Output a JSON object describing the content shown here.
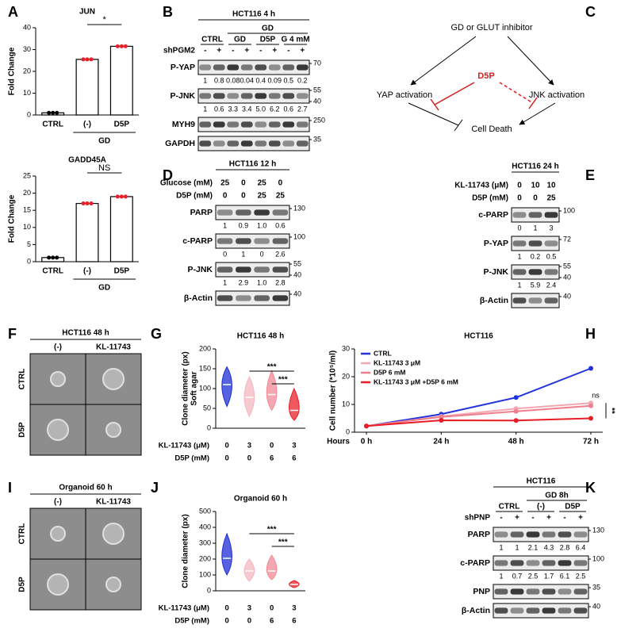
{
  "panel_labels": [
    "A",
    "B",
    "C",
    "D",
    "E",
    "F",
    "G",
    "H",
    "I",
    "J",
    "K"
  ],
  "chart_data": [
    {
      "type": "bar",
      "title": "JUN",
      "ylabel": "Fold Change",
      "categories": [
        "CTRL",
        "(-)",
        "D5P"
      ],
      "values": [
        1,
        25.5,
        31.5
      ],
      "color": "#ffffff",
      "marker_colors": [
        "#000000",
        "#e8202a",
        "#e8202a"
      ],
      "group_label": "GD",
      "annotation": "*",
      "ylim": [
        0,
        40
      ],
      "yticks": [
        0,
        10,
        20,
        30,
        40
      ]
    },
    {
      "type": "bar",
      "title": "GADD45A",
      "ylabel": "Fold Change",
      "categories": [
        "CTRL",
        "(-)",
        "D5P"
      ],
      "values": [
        1.2,
        17,
        19
      ],
      "color": "#ffffff",
      "marker_colors": [
        "#000000",
        "#e8202a",
        "#e8202a"
      ],
      "group_label": "GD",
      "annotation": "NS",
      "ylim": [
        0,
        25
      ],
      "yticks": [
        0,
        5,
        10,
        15,
        20,
        25
      ]
    },
    {
      "type": "violin",
      "title": "HCT116  48 h",
      "ylabel": "Clone diameter (px)",
      "sublabel": "Soft agar",
      "conditions": [
        {
          "label": "KL-11743 (μM)",
          "values": [
            0,
            3,
            0,
            3
          ]
        },
        {
          "label": "D5P (mM)",
          "values": [
            0,
            0,
            6,
            6
          ]
        }
      ],
      "colors": [
        "#1f2ed6",
        "#f4b8c0",
        "#f08a96",
        "#e8202a"
      ],
      "medians": [
        110,
        78,
        85,
        45
      ],
      "mins": [
        55,
        30,
        45,
        20
      ],
      "maxs": [
        155,
        130,
        145,
        100
      ],
      "annotations": [
        "***",
        "***"
      ],
      "ylim": [
        0,
        200
      ],
      "yticks": [
        0,
        50,
        100,
        150,
        200
      ]
    },
    {
      "type": "line",
      "title": "HCT116",
      "xlabel": "Hours",
      "ylabel": "Cell number (*10⁵/ml)",
      "categories": [
        "0 h",
        "24 h",
        "48 h",
        "72 h"
      ],
      "series": [
        {
          "name": "CTRL",
          "color": "#2233dd",
          "values": [
            2.2,
            6.5,
            12.5,
            23
          ]
        },
        {
          "name": "KL-11743 3 μM",
          "color": "#f4a7b0",
          "values": [
            2.2,
            5.7,
            8.5,
            10.5
          ]
        },
        {
          "name": "D5P 6 mM",
          "color": "#ef7f8c",
          "values": [
            2.2,
            5.5,
            7.5,
            9.5
          ]
        },
        {
          "name": "KL-11743 3 μM +D5P 6 mM",
          "color": "#e81d25",
          "values": [
            2.2,
            4.3,
            4.2,
            5
          ]
        }
      ],
      "annotations": [
        "ns",
        "**"
      ],
      "ylim": [
        0,
        30
      ],
      "yticks": [
        0,
        10,
        20,
        30
      ]
    },
    {
      "type": "violin",
      "title": "Organoid  60 h",
      "ylabel": "Clone diameter (px)",
      "conditions": [
        {
          "label": "KL-11743 (μM)",
          "values": [
            0,
            3,
            0,
            3
          ]
        },
        {
          "label": "D5P (mM)",
          "values": [
            0,
            0,
            6,
            6
          ]
        }
      ],
      "colors": [
        "#1f2ed6",
        "#f4b8c0",
        "#f08a96",
        "#e8202a"
      ],
      "medians": [
        205,
        125,
        125,
        40
      ],
      "mins": [
        100,
        60,
        70,
        20
      ],
      "maxs": [
        360,
        200,
        225,
        65
      ],
      "annotations": [
        "***",
        "***"
      ],
      "ylim": [
        0,
        500
      ],
      "yticks": [
        0,
        100,
        200,
        300,
        400,
        500
      ]
    }
  ],
  "blots": {
    "B": {
      "title": "HCT116 4 h",
      "supergroup": "GD",
      "groups": [
        "CTRL",
        "GD",
        "D5P",
        "G 4 mM"
      ],
      "lane_label": "shPGM2",
      "lanes": [
        "-",
        "+",
        "-",
        "+",
        "-",
        "+",
        "-",
        "+"
      ],
      "rows": [
        {
          "label": "P-YAP",
          "markers": [
            70
          ],
          "quant": [
            "1",
            "0.8",
            "0.08",
            "0.04",
            "0.4",
            "0.09",
            "0.5",
            "0.2"
          ]
        },
        {
          "label": "P-JNK",
          "markers": [
            55,
            40
          ],
          "quant": [
            "1",
            "0.6",
            "3.3",
            "3.4",
            "5.0",
            "6.2",
            "0.6",
            "2.7"
          ]
        },
        {
          "label": "MYH9",
          "markers": [
            250
          ]
        },
        {
          "label": "GAPDH",
          "markers": [
            35
          ]
        }
      ]
    },
    "D": {
      "title": "HCT116 12 h",
      "conditions": [
        {
          "label": "Glucose (mM)",
          "values": [
            25,
            0,
            25,
            0
          ]
        },
        {
          "label": "D5P (mM)",
          "values": [
            0,
            0,
            25,
            25
          ]
        }
      ],
      "rows": [
        {
          "label": "PARP",
          "markers": [
            130
          ],
          "quant": [
            "1",
            "0.9",
            "1.0",
            "0.6"
          ]
        },
        {
          "label": "c-PARP",
          "markers": [
            100
          ],
          "quant": [
            "0",
            "1",
            "0",
            "2.6"
          ]
        },
        {
          "label": "P-JNK",
          "markers": [
            55,
            40
          ],
          "quant": [
            "1",
            "2.9",
            "1.0",
            "2.8"
          ]
        },
        {
          "label": "β-Actin",
          "markers": [
            40
          ]
        }
      ]
    },
    "E": {
      "title": "HCT116 24 h",
      "conditions": [
        {
          "label": "KL-11743 (μM)",
          "values": [
            0,
            10,
            10
          ]
        },
        {
          "label": "D5P (mM)",
          "values": [
            0,
            0,
            25
          ]
        }
      ],
      "rows": [
        {
          "label": "c-PARP",
          "markers": [
            100
          ],
          "quant": [
            "0",
            "1",
            "3"
          ]
        },
        {
          "label": "P-YAP",
          "markers": [
            72
          ],
          "quant": [
            "1",
            "0.2",
            "0.5"
          ]
        },
        {
          "label": "P-JNK",
          "markers": [
            55,
            40
          ],
          "quant": [
            "1",
            "5.9",
            "2.4"
          ]
        },
        {
          "label": "β-Actin",
          "markers": [
            40
          ]
        }
      ]
    },
    "K": {
      "title": "HCT116",
      "supergroup": "GD 8h",
      "groups": [
        "CTRL",
        "(-)",
        "D5P"
      ],
      "lane_label": "shPNP",
      "lanes": [
        "-",
        "+",
        "-",
        "+",
        "-",
        "+"
      ],
      "rows": [
        {
          "label": "PARP",
          "markers": [
            130
          ],
          "quant": [
            "1",
            "1",
            "2.1",
            "4.3",
            "2.8",
            "6.4"
          ]
        },
        {
          "label": "c-PARP",
          "markers": [
            100
          ],
          "quant": [
            "1",
            "0.7",
            "2.5",
            "1.7",
            "6.1",
            "2.5"
          ]
        },
        {
          "label": "PNP",
          "markers": [
            35
          ]
        },
        {
          "label": "β-Actin",
          "markers": [
            40
          ]
        }
      ]
    }
  },
  "micrographs": {
    "F": {
      "title": "HCT116 48 h",
      "columns": [
        "(-)",
        "KL-11743"
      ],
      "rows": [
        "CTRL",
        "D5P"
      ]
    },
    "I": {
      "title": "Organoid  60 h",
      "columns": [
        "(-)",
        "KL-11743"
      ],
      "rows": [
        "CTRL",
        "D5P"
      ]
    }
  },
  "diagram": {
    "nodes": [
      "GD or GLUT inhibitor",
      "YAP activation",
      "JNK activation",
      "Cell Death"
    ],
    "inhibitor": "D5P"
  }
}
